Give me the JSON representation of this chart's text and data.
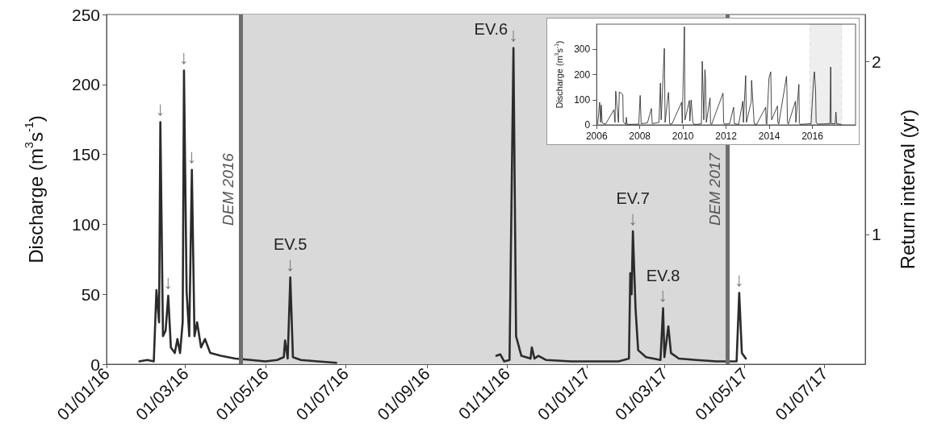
{
  "chart_data": [
    {
      "type": "line",
      "ylabel": "Discharge (m$^{3}$s$^{-1}$)",
      "y2label": "Return interval (yr)",
      "xlim": [
        "2016-01-01",
        "2017-08-01"
      ],
      "xticks": [
        {
          "value": "2016-01-01",
          "label": "01/01/16"
        },
        {
          "value": "2016-03-01",
          "label": "01/03/16"
        },
        {
          "value": "2016-05-01",
          "label": "01/05/16"
        },
        {
          "value": "2016-07-01",
          "label": "01/07/16"
        },
        {
          "value": "2016-09-01",
          "label": "01/09/16"
        },
        {
          "value": "2016-11-01",
          "label": "01/11/16"
        },
        {
          "value": "2017-01-01",
          "label": "01/01/17"
        },
        {
          "value": "2017-03-01",
          "label": "01/03/17"
        },
        {
          "value": "2017-05-01",
          "label": "01/05/17"
        },
        {
          "value": "2017-07-01",
          "label": "01/07/17"
        }
      ],
      "ylim": [
        0,
        250
      ],
      "yticks": [
        0,
        50,
        100,
        150,
        200,
        250
      ],
      "y2lim": [
        0.25,
        2.27
      ],
      "y2ticks": [
        1,
        2
      ],
      "x": [
        "2016-01-26",
        "2016-02-01",
        "2016-02-06",
        "2016-02-08",
        "2016-02-10",
        "2016-02-11",
        "2016-02-13",
        "2016-02-15",
        "2016-02-17",
        "2016-02-19",
        "2016-02-22",
        "2016-02-24",
        "2016-02-26",
        "2016-02-28",
        "2016-02-29",
        "2016-03-02",
        "2016-03-04",
        "2016-03-06",
        "2016-03-08",
        "2016-03-10",
        "2016-03-13",
        "2016-03-16",
        "2016-03-20",
        "2016-03-28",
        "2016-04-08",
        "2016-04-20",
        "2016-05-01",
        "2016-05-10",
        "2016-05-15",
        "2016-05-16",
        "2016-05-18",
        "2016-05-20",
        "2016-05-22",
        "2016-05-28",
        "2016-06-10",
        "2016-06-24",
        "2016-08-15",
        "2016-10-24",
        "2016-10-27",
        "2016-10-30",
        "2016-11-03",
        "2016-11-06",
        "2016-11-08",
        "2016-11-12",
        "2016-11-19",
        "2016-11-20",
        "2016-11-22",
        "2016-11-25",
        "2016-12-01",
        "2016-12-20",
        "2017-01-10",
        "2017-01-25",
        "2017-02-02",
        "2017-02-03",
        "2017-02-04",
        "2017-02-05",
        "2017-02-07",
        "2017-02-09",
        "2017-02-15",
        "2017-02-26",
        "2017-02-28",
        "2017-03-01",
        "2017-03-04",
        "2017-03-06",
        "2017-03-12",
        "2017-03-25",
        "2017-04-10",
        "2017-04-25",
        "2017-04-27",
        "2017-04-29",
        "2017-05-02"
      ],
      "series": [
        {
          "color": "#2b2b2b",
          "values": [
            2,
            3,
            2,
            53,
            30,
            173,
            20,
            24,
            49,
            12,
            8,
            18,
            8,
            30,
            210,
            52,
            20,
            139,
            20,
            30,
            12,
            18,
            8,
            6,
            4,
            3,
            2,
            3,
            5,
            17,
            4,
            62,
            5,
            3,
            2,
            1,
            null,
            6,
            7,
            2,
            3,
            226,
            20,
            6,
            4,
            12,
            4,
            6,
            3,
            2,
            2,
            2,
            4,
            65,
            50,
            95,
            40,
            10,
            5,
            3,
            40,
            5,
            27,
            8,
            4,
            3,
            2,
            2,
            51,
            8,
            4
          ]
        }
      ],
      "ref_lines": [
        {
          "axis": "x",
          "value": "2016-04-12",
          "label": "DEM 2016",
          "color": "#6e6e6e"
        },
        {
          "axis": "x",
          "value": "2017-04-18",
          "label": "DEM 2017",
          "color": "#6e6e6e"
        }
      ],
      "bands": [
        {
          "axis": "x",
          "from": "2016-04-12",
          "to": "2017-04-18",
          "color": "#d9d9d9"
        }
      ],
      "annotations": [
        {
          "text": "↓",
          "x": "2016-02-11",
          "y": 173
        },
        {
          "text": "↓",
          "x": "2016-02-17",
          "y": 49
        },
        {
          "text": "↓",
          "x": "2016-02-29",
          "y": 210
        },
        {
          "text": "↓",
          "x": "2016-03-06",
          "y": 139
        },
        {
          "text": "↓",
          "x": "2016-05-20",
          "y": 62
        },
        {
          "text": "EV.5",
          "x": "2016-05-20",
          "y": 62
        },
        {
          "text": "↓",
          "x": "2016-11-06",
          "y": 226
        },
        {
          "text": "EV.6",
          "x": "2016-11-06",
          "y": 226
        },
        {
          "text": "↓",
          "x": "2017-02-05",
          "y": 95
        },
        {
          "text": "EV.7",
          "x": "2017-02-05",
          "y": 95
        },
        {
          "text": "↓",
          "x": "2017-02-28",
          "y": 40
        },
        {
          "text": "EV.8",
          "x": "2017-02-28",
          "y": 40
        },
        {
          "text": "↓",
          "x": "2017-04-27",
          "y": 51
        }
      ]
    },
    {
      "type": "line",
      "ylabel": "Discharge (m$^{3}$s$^{-1}$)",
      "xlim": [
        "2006",
        "2018"
      ],
      "xticks": [
        "2006",
        "2008",
        "2010",
        "2012",
        "2014",
        "2016"
      ],
      "ylim": [
        0,
        400
      ],
      "yticks": [
        0,
        100,
        200,
        300
      ],
      "x": [
        "2006-01-20",
        "2006-02-20",
        "2006-03-10",
        "2006-03-20",
        "2006-04-05",
        "2006-06-01",
        "2006-10-20",
        "2006-11-08",
        "2006-11-20",
        "2007-01-05",
        "2007-01-20",
        "2007-03-20",
        "2007-03-28",
        "2007-05-10",
        "2007-05-18",
        "2007-06-01",
        "2007-12-15",
        "2008-01-08",
        "2008-01-25",
        "2008-05-10",
        "2008-07-16",
        "2008-07-30",
        "2008-11-20",
        "2008-12-16",
        "2008-12-28",
        "2009-02-20",
        "2009-03-05",
        "2009-05-01",
        "2009-05-08",
        "2009-05-20",
        "2009-05-26",
        "2009-07-01",
        "2009-12-10",
        "2009-12-20",
        "2010-01-26",
        "2010-02-05",
        "2010-04-20",
        "2010-04-28",
        "2010-05-20",
        "2010-06-18",
        "2010-07-01",
        "2010-09-01",
        "2010-11-10",
        "2010-11-24",
        "2010-12-20",
        "2011-01-08",
        "2011-01-18",
        "2011-02-01",
        "2011-04-05",
        "2011-04-13",
        "2011-05-01",
        "2011-11-10",
        "2011-11-21",
        "2011-12-05",
        "2012-03-01",
        "2012-05-08",
        "2012-05-20",
        "2012-08-01",
        "2012-10-10",
        "2012-10-20",
        "2012-11-28",
        "2012-12-10",
        "2013-03-01",
        "2013-03-08",
        "2013-04-20",
        "2013-04-28",
        "2013-06-01",
        "2013-11-01",
        "2013-11-10",
        "2013-11-20",
        "2013-12-28",
        "2014-01-26",
        "2014-02-10",
        "2014-05-20",
        "2014-05-27",
        "2014-06-10",
        "2014-10-20",
        "2014-10-27",
        "2014-11-05",
        "2014-11-20",
        "2015-03-20",
        "2015-03-27",
        "2015-05-18",
        "2015-05-26",
        "2015-06-10",
        "2015-12-10",
        "2016-01-22",
        "2016-02-05",
        "2016-02-25",
        "2016-03-05",
        "2016-04-01",
        "2016-10-25",
        "2016-11-06",
        "2016-11-15",
        "2017-01-20",
        "2017-02-03",
        "2017-02-15",
        "2017-05-01"
      ],
      "series": [
        {
          "color": "#1a1a1a",
          "values": [
            5,
            90,
            10,
            79,
            8,
            3,
            60,
            10,
            134,
            10,
            131,
            121,
            12,
            2,
            30,
            2,
            3,
            117,
            5,
            8,
            65,
            5,
            10,
            166,
            20,
            304,
            10,
            129,
            100,
            10,
            3,
            5,
            90,
            6,
            390,
            20,
            97,
            15,
            99,
            10,
            3,
            2,
            5,
            253,
            20,
            219,
            182,
            10,
            107,
            5,
            2,
            126,
            10,
            3,
            5,
            70,
            5,
            2,
            94,
            10,
            196,
            10,
            91,
            177,
            10,
            3,
            2,
            70,
            8,
            3,
            187,
            211,
            20,
            75,
            10,
            3,
            193,
            145,
            10,
            3,
            94,
            10,
            161,
            8,
            2,
            5,
            182,
            211,
            134,
            10,
            3,
            5,
            230,
            5,
            5,
            51,
            5,
            2
          ]
        }
      ],
      "bands": [
        {
          "axis": "x",
          "from": "2015-11-20",
          "to": "2017-05-10",
          "color": "#777777"
        }
      ]
    }
  ]
}
